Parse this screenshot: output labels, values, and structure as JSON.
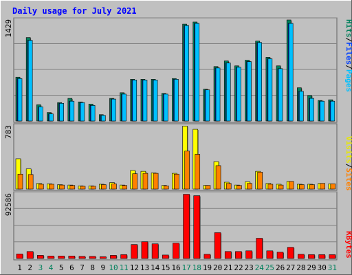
{
  "title": "Daily usage for July 2021",
  "colors": {
    "background": "#c0c0c0",
    "title": "#0000ff",
    "hits": "#00805c",
    "files": "#0040ff",
    "pages": "#00c0ff",
    "visits": "#ffff00",
    "sites": "#ff8000",
    "kbytes": "#ff0000",
    "weekday": "#000000",
    "weekend": "#00805c"
  },
  "chart_data": [
    {
      "type": "bar",
      "panel": "hits-files-pages",
      "axis_max_label": "1429",
      "ylim": [
        0,
        1429
      ],
      "legend": {
        "hits": "Hits",
        "files": "Files",
        "pages": "Pages",
        "sep": "/"
      },
      "categories": [
        "1",
        "2",
        "3",
        "4",
        "5",
        "6",
        "7",
        "8",
        "9",
        "10",
        "11",
        "12",
        "13",
        "14",
        "15",
        "16",
        "17",
        "18",
        "19",
        "20",
        "21",
        "22",
        "23",
        "24",
        "25",
        "26",
        "27",
        "28",
        "29",
        "30",
        "31"
      ],
      "weekend": [
        false,
        false,
        true,
        true,
        false,
        false,
        false,
        false,
        false,
        true,
        true,
        false,
        false,
        false,
        false,
        false,
        true,
        true,
        false,
        false,
        false,
        false,
        false,
        true,
        true,
        false,
        false,
        false,
        false,
        false,
        true
      ],
      "series": [
        {
          "name": "Hits",
          "values": [
            620,
            1180,
            230,
            120,
            260,
            320,
            270,
            240,
            90,
            320,
            400,
            590,
            590,
            590,
            390,
            600,
            1370,
            1400,
            450,
            770,
            850,
            780,
            860,
            1130,
            900,
            780,
            1440,
            470,
            360,
            290,
            300
          ]
        },
        {
          "name": "Files",
          "values": [
            600,
            1140,
            200,
            100,
            250,
            280,
            260,
            220,
            80,
            310,
            380,
            580,
            580,
            580,
            380,
            590,
            1350,
            1380,
            440,
            750,
            820,
            760,
            840,
            1110,
            880,
            740,
            1380,
            420,
            320,
            280,
            280
          ]
        },
        {
          "name": "Pages",
          "values": [
            600,
            1140,
            200,
            100,
            250,
            280,
            260,
            220,
            80,
            310,
            380,
            580,
            580,
            580,
            380,
            590,
            1350,
            1380,
            440,
            750,
            820,
            760,
            840,
            1110,
            880,
            740,
            1380,
            420,
            320,
            280,
            280
          ]
        }
      ]
    },
    {
      "type": "bar",
      "panel": "visits-sites",
      "axis_max_label": "783",
      "ylim": [
        0,
        783
      ],
      "legend": {
        "visits": "Visits",
        "sites": "Sites",
        "sep": "/"
      },
      "categories": [
        "1",
        "2",
        "3",
        "4",
        "5",
        "6",
        "7",
        "8",
        "9",
        "10",
        "11",
        "12",
        "13",
        "14",
        "15",
        "16",
        "17",
        "18",
        "19",
        "20",
        "21",
        "22",
        "23",
        "24",
        "25",
        "26",
        "27",
        "28",
        "29",
        "30",
        "31"
      ],
      "series": [
        {
          "name": "Visits",
          "values": [
            375,
            250,
            70,
            65,
            55,
            50,
            40,
            40,
            60,
            80,
            50,
            230,
            220,
            200,
            45,
            195,
            780,
            740,
            45,
            340,
            85,
            50,
            90,
            220,
            70,
            60,
            95,
            60,
            60,
            70,
            65
          ]
        },
        {
          "name": "Sites",
          "values": [
            185,
            180,
            60,
            60,
            50,
            45,
            35,
            35,
            55,
            65,
            45,
            190,
            195,
            195,
            40,
            185,
            470,
            430,
            45,
            290,
            70,
            45,
            70,
            210,
            60,
            50,
            95,
            55,
            55,
            70,
            65
          ]
        }
      ]
    },
    {
      "type": "bar",
      "panel": "kbytes",
      "axis_max_label": "92586",
      "ylim": [
        0,
        92586
      ],
      "legend": {
        "kbytes": "KBytes"
      },
      "categories": [
        "1",
        "2",
        "3",
        "4",
        "5",
        "6",
        "7",
        "8",
        "9",
        "10",
        "11",
        "12",
        "13",
        "14",
        "15",
        "16",
        "17",
        "18",
        "19",
        "20",
        "21",
        "22",
        "23",
        "24",
        "25",
        "26",
        "27",
        "28",
        "29",
        "30",
        "31"
      ],
      "series": [
        {
          "name": "KBytes",
          "values": [
            6500,
            10000,
            4500,
            3500,
            3500,
            3500,
            3000,
            3000,
            2500,
            4500,
            5500,
            20000,
            24000,
            21000,
            5000,
            22000,
            92000,
            90000,
            6000,
            37000,
            10000,
            10000,
            11000,
            29000,
            11000,
            9000,
            16000,
            6000,
            5500,
            5500,
            5500
          ]
        }
      ]
    }
  ]
}
